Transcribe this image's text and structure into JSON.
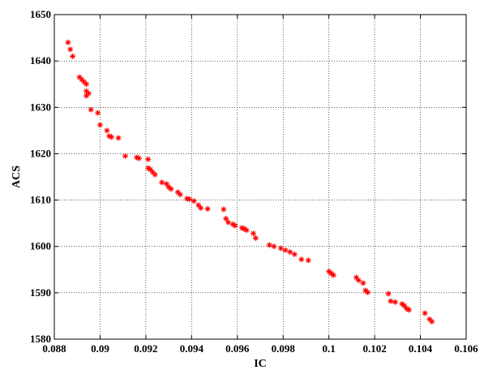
{
  "chart_data": {
    "type": "scatter",
    "xlabel": "IC",
    "ylabel": "ACS",
    "xlim": [
      0.088,
      0.106
    ],
    "ylim": [
      1580,
      1650
    ],
    "xticks": [
      "0.088",
      "0.09",
      "0.092",
      "0.094",
      "0.096",
      "0.098",
      "0.1",
      "0.102",
      "0.104",
      "0.106"
    ],
    "yticks": [
      "1580",
      "1590",
      "1600",
      "1610",
      "1620",
      "1630",
      "1640",
      "1650"
    ],
    "grid": true,
    "marker": "asterisk",
    "marker_color": "#ff0000",
    "series": [
      {
        "x": [
          0.0886,
          0.0887,
          0.0888,
          0.0891,
          0.0892,
          0.0893,
          0.0894,
          0.0894,
          0.0895,
          0.0894,
          0.0896,
          0.0899,
          0.09,
          0.0903,
          0.0904,
          0.0905,
          0.0908,
          0.0911,
          0.0916,
          0.0917,
          0.0921,
          0.0921,
          0.0922,
          0.0923,
          0.0924,
          0.0927,
          0.0929,
          0.093,
          0.0931,
          0.0934,
          0.0935,
          0.0938,
          0.0939,
          0.0941,
          0.0943,
          0.0944,
          0.0947,
          0.0954,
          0.0955,
          0.0956,
          0.0958,
          0.0959,
          0.0962,
          0.0963,
          0.0964,
          0.0967,
          0.0968,
          0.0974,
          0.0976,
          0.0979,
          0.0981,
          0.0983,
          0.0985,
          0.0988,
          0.0991,
          0.1,
          0.1001,
          0.1002,
          0.1012,
          0.1013,
          0.1015,
          0.1016,
          0.1017,
          0.1026,
          0.1027,
          0.1029,
          0.1032,
          0.1033,
          0.1034,
          0.1035,
          0.1042,
          0.1044,
          0.1045
        ],
        "y": [
          1644.0,
          1642.5,
          1641.0,
          1636.5,
          1636.0,
          1635.5,
          1635.0,
          1633.5,
          1633.0,
          1632.5,
          1629.5,
          1628.8,
          1626.2,
          1625.0,
          1623.8,
          1623.6,
          1623.4,
          1619.5,
          1619.2,
          1619.0,
          1618.8,
          1616.9,
          1616.6,
          1616.0,
          1615.5,
          1613.8,
          1613.5,
          1612.8,
          1612.4,
          1611.7,
          1611.2,
          1610.3,
          1610.2,
          1609.8,
          1608.9,
          1608.3,
          1608.1,
          1608.0,
          1606.0,
          1605.2,
          1604.8,
          1604.5,
          1604.0,
          1603.8,
          1603.5,
          1602.8,
          1601.8,
          1600.3,
          1600.0,
          1599.6,
          1599.2,
          1598.8,
          1598.3,
          1597.2,
          1597.0,
          1594.6,
          1594.2,
          1593.8,
          1593.3,
          1592.7,
          1592.1,
          1590.5,
          1590.1,
          1589.8,
          1588.2,
          1588.0,
          1587.6,
          1587.2,
          1586.6,
          1586.3,
          1585.6,
          1584.3,
          1583.8
        ]
      }
    ]
  }
}
